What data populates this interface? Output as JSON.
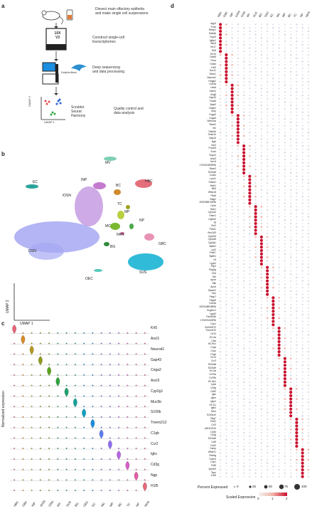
{
  "panels": {
    "a": "a",
    "b": "b",
    "c": "c",
    "d": "d"
  },
  "workflow": {
    "steps": [
      "Dissect main olfactory epithelia\nand make single cell suspensions",
      "Construct single-cell\ntranscriptomes",
      "Deep sequencing\nand data processing",
      "Quality control and\ndata analysis"
    ],
    "chip_label": "10X\nV3",
    "dolphinnext": "DolphinNext",
    "tools": "Scrublet\nSeurat\nHarmony",
    "umap_y": "UMAP 2",
    "umap_x": "UMAP 1"
  },
  "umap": {
    "clusters": [
      "MV",
      "INP",
      "EC",
      "iOSN",
      "HBC",
      "BC",
      "TC",
      "MP",
      "MC",
      "NP",
      "NKN",
      "BG",
      "GBC",
      "OSN",
      "SUS",
      "OEC"
    ],
    "axis_y": "UMAP 2",
    "axis_x": "UMAP 1"
  },
  "violin": {
    "ylabel": "Normalized expression",
    "genes": [
      "Krt5",
      "Ascl1",
      "Neurod1",
      "Gap43",
      "Cnga2",
      "Ascl3",
      "Cyp2g1",
      "Muc5b",
      "S100b",
      "Tmem212",
      "C1qb",
      "Ccr2",
      "Igkc",
      "Cd3g",
      "Ngp",
      "H1f5"
    ],
    "celltypes": [
      "HBC",
      "GBC",
      "INP",
      "iOSN",
      "OSN",
      "MV",
      "SUS",
      "BG",
      "OEC",
      "EC",
      "MC",
      "MP",
      "BC",
      "TC",
      "NP",
      "NKN"
    ],
    "colors": [
      "#e8667a",
      "#d98a2b",
      "#b59a22",
      "#8f9a1c",
      "#5aa51e",
      "#2ea33a",
      "#1fa36e",
      "#14a39a",
      "#11a2c2",
      "#1a8fe0",
      "#5d7ef2",
      "#8f6df2",
      "#b865e6",
      "#d95fc8",
      "#e45fa6",
      "#e8667a"
    ]
  },
  "dotplot": {
    "celltypes": [
      "HBC",
      "GBC",
      "INP",
      "iOSN",
      "OSN",
      "MV",
      "SUS",
      "BG",
      "OEC",
      "EC",
      "MC",
      "MP",
      "BC",
      "TC",
      "NP",
      "NKN"
    ],
    "genes": [
      "Aqp3",
      "Fx3d",
      "Eltmp1",
      "Slc6a6",
      "Fxyd3",
      "Igfbp2",
      "Birc5",
      "Krt17",
      "Krt5",
      "Krt14",
      "Tubb5",
      "Pcna",
      "H2afz",
      "H1f0",
      "Sox11",
      "Stmn1",
      "Neurod1",
      "Hmgb2",
      "Cd24a",
      "Hes6",
      "Ube2c",
      "Gng8",
      "Gap43",
      "Fxyd6",
      "Bazl2",
      "Ddah2",
      "Omp",
      "Cnga2",
      "Cnga4",
      "Selenow",
      "Stmn2",
      "Vtn",
      "Tubb2b",
      "Tmsb10",
      "Gap43",
      "Ngfr",
      "Cbr2",
      "Pou2f3",
      "Ecs4",
      "Gng13",
      "Ascl3",
      "Nrn1l",
      "1700012B09Rik",
      "Stom3",
      "S100a5",
      "Cox6c",
      "Lynx1",
      "Smbd1",
      "Mob1",
      "Itih5",
      "Wfdc18",
      "Pax6",
      "Stag1",
      "4930480K15Rik",
      "Cpvh",
      "Muc1",
      "Cyp1a2",
      "Gstm1",
      "Ugt2a2",
      "Tff",
      "Cbr2",
      "Pcbd1",
      "Sec14l3",
      "Cyp2a4",
      "Cyp2a5",
      "Cyp2g1",
      "Bpifa1",
      "Lyz2",
      "Pcdh7",
      "Bpifb1",
      "Ltf",
      "Lygz2",
      "Fkp2",
      "Reg3g",
      "Cbd",
      "Dbi",
      "Apoe",
      "Slpi",
      "Apod",
      "Sparcl1",
      "Nov",
      "Fabp7",
      "Fabp5",
      "Cd24a",
      "4933448E08Rik",
      "Scgb1c1",
      "Lypd2",
      "Fam183b",
      "1700094I24Rik",
      "Cop1",
      "AU040972",
      "Tmem212",
      "Cd74",
      "H2-Aa",
      "Ctss",
      "H2-Eb1",
      "C1qa",
      "C1qc",
      "C1qb",
      "Cd74",
      "Ccr2",
      "S100a8",
      "S100a9",
      "H2-Aa",
      "Cd79a",
      "Cd79b",
      "H2-Ab1",
      "Ly6d",
      "Cd3g",
      "Cd52",
      "Igkc",
      "Ighm",
      "Igkc2",
      "H2-D1",
      "Igfb2",
      "B2m",
      "S100a10",
      "Nkg7",
      "Trbc2",
      "Cd7l",
      "AW112010",
      "Cd3d",
      "Cd3g",
      "S100a6",
      "Ccl5",
      "Cxcl2",
      "Camp",
      "Wfdc21",
      "Retnlg",
      "Tube1i",
      "Crip1",
      "H1f5",
      "Vpreb3",
      "Tspo",
      "H1f5"
    ],
    "legend_pct_title": "Percent Expressed",
    "legend_pct_values": [
      "0",
      "25",
      "50",
      "75",
      "100"
    ],
    "legend_scale_title": "Scaled Expression",
    "legend_scale_values": [
      "0",
      "1",
      "2"
    ]
  }
}
